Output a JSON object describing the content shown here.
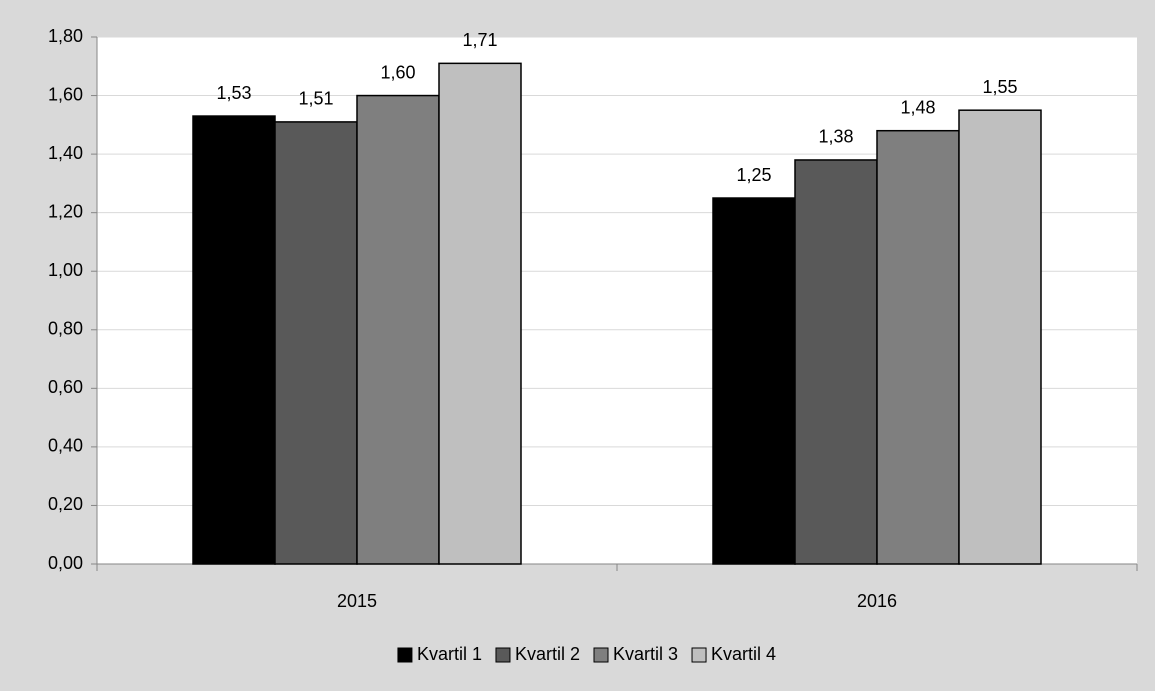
{
  "chart_data": {
    "type": "bar",
    "categories": [
      "2015",
      "2016"
    ],
    "series": [
      {
        "name": "Kvartil 1",
        "color": "#000000",
        "values": [
          1.53,
          1.25
        ],
        "value_labels": [
          "1,53",
          "1,25"
        ]
      },
      {
        "name": "Kvartil 2",
        "color": "#595959",
        "values": [
          1.51,
          1.38
        ],
        "value_labels": [
          "1,51",
          "1,38"
        ]
      },
      {
        "name": "Kvartil 3",
        "color": "#7f7f7f",
        "values": [
          1.6,
          1.48
        ],
        "value_labels": [
          "1,60",
          "1,48"
        ]
      },
      {
        "name": "Kvartil 4",
        "color": "#bfbfbf",
        "values": [
          1.71,
          1.55
        ],
        "value_labels": [
          "1,71",
          "1,55"
        ]
      }
    ],
    "ylim": [
      0,
      1.8
    ],
    "yticks": [
      {
        "value": 0,
        "label": "0,00"
      },
      {
        "value": 0.2,
        "label": "0,20"
      },
      {
        "value": 0.4,
        "label": "0,40"
      },
      {
        "value": 0.6,
        "label": "0,60"
      },
      {
        "value": 0.8,
        "label": "0,80"
      },
      {
        "value": 1.0,
        "label": "1,00"
      },
      {
        "value": 1.2,
        "label": "1,20"
      },
      {
        "value": 1.4,
        "label": "1,40"
      },
      {
        "value": 1.6,
        "label": "1,60"
      },
      {
        "value": 1.8,
        "label": "1,80"
      }
    ],
    "grid": true,
    "legend": "bottom"
  }
}
